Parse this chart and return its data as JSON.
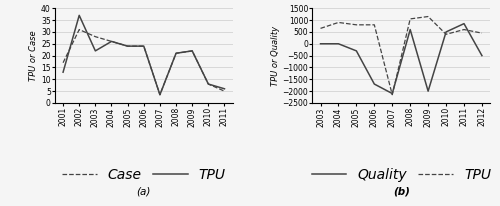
{
  "panel_a": {
    "years": [
      2001,
      2002,
      2003,
      2004,
      2005,
      2006,
      2007,
      2008,
      2009,
      2010,
      2011
    ],
    "case": [
      17,
      31,
      28,
      26,
      24,
      24,
      3.5,
      21,
      22,
      8,
      5
    ],
    "tpu": [
      13,
      37,
      22,
      26,
      24,
      24,
      3.5,
      21,
      22,
      8,
      6
    ],
    "ylabel": "TPU or Case",
    "ylim": [
      0,
      40
    ],
    "yticks": [
      0,
      5,
      10,
      15,
      20,
      25,
      30,
      35,
      40
    ],
    "xlabel_label": "(a)"
  },
  "panel_b": {
    "years": [
      2003,
      2004,
      2005,
      2006,
      2007,
      2008,
      2009,
      2010,
      2011,
      2012
    ],
    "quality": [
      0,
      0,
      -300,
      -1700,
      -2100,
      600,
      -2000,
      500,
      850,
      -500
    ],
    "tpu": [
      650,
      900,
      800,
      800,
      -2150,
      1050,
      1150,
      400,
      600,
      450
    ],
    "ylabel": "TPU or Quality",
    "ylim": [
      -2500,
      1500
    ],
    "yticks": [
      -2500,
      -2000,
      -1500,
      -1000,
      -500,
      0,
      500,
      1000,
      1500
    ],
    "xlabel_label": "(b)"
  },
  "line_color": "#444444",
  "bg_color": "#f5f5f5",
  "grid_color": "#cccccc"
}
